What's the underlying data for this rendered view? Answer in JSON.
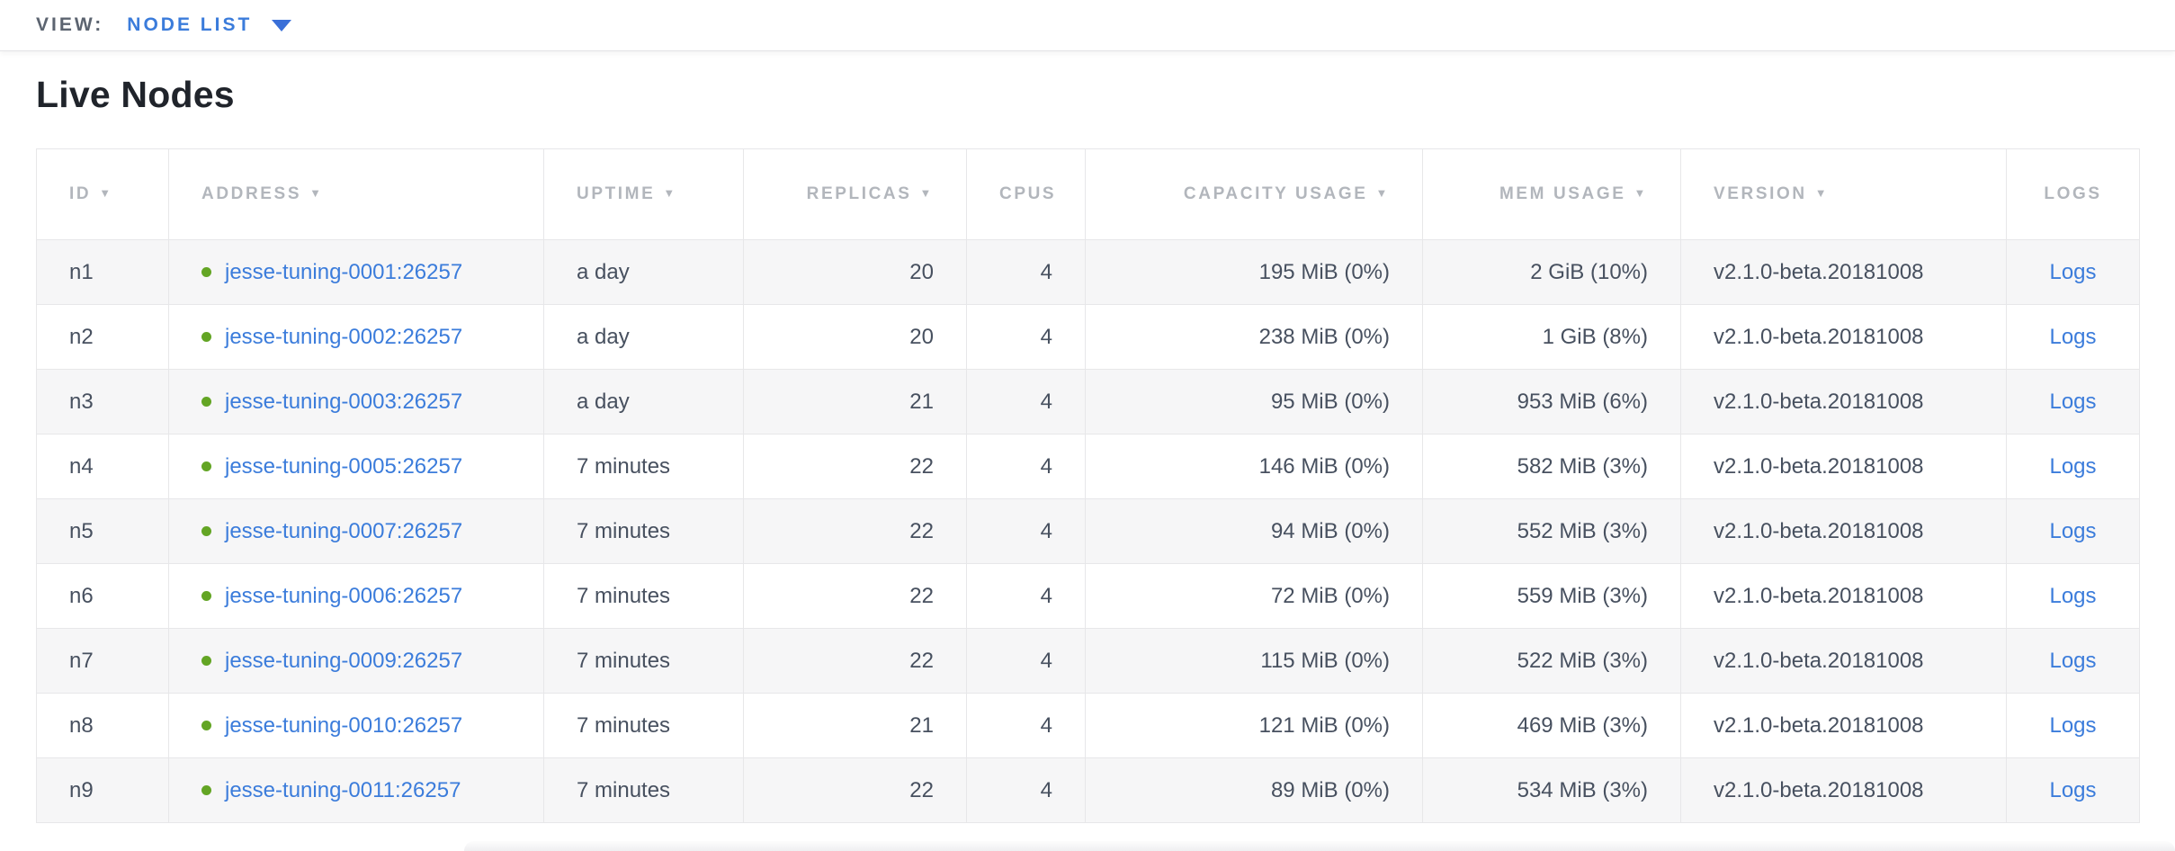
{
  "view_bar": {
    "label": "VIEW:",
    "selected_view": "NODE LIST"
  },
  "page": {
    "title": "Live Nodes"
  },
  "table": {
    "sort_icon": "▼",
    "address_status_icon": "green-dot",
    "columns": [
      {
        "key": "id",
        "label": "ID",
        "sortable": true
      },
      {
        "key": "address",
        "label": "ADDRESS",
        "sortable": true
      },
      {
        "key": "uptime",
        "label": "UPTIME",
        "sortable": true
      },
      {
        "key": "replicas",
        "label": "REPLICAS",
        "sortable": true
      },
      {
        "key": "cpus",
        "label": "CPUS",
        "sortable": false
      },
      {
        "key": "capacity",
        "label": "CAPACITY USAGE",
        "sortable": true
      },
      {
        "key": "mem",
        "label": "MEM USAGE",
        "sortable": true
      },
      {
        "key": "version",
        "label": "VERSION",
        "sortable": true
      },
      {
        "key": "logs",
        "label": "LOGS",
        "sortable": false
      }
    ],
    "rows": [
      {
        "id": "n1",
        "address": "jesse-tuning-0001:26257",
        "uptime": "a day",
        "replicas": "20",
        "cpus": "4",
        "capacity": "195 MiB (0%)",
        "mem": "2 GiB (10%)",
        "version": "v2.1.0-beta.20181008",
        "logs": "Logs"
      },
      {
        "id": "n2",
        "address": "jesse-tuning-0002:26257",
        "uptime": "a day",
        "replicas": "20",
        "cpus": "4",
        "capacity": "238 MiB (0%)",
        "mem": "1 GiB (8%)",
        "version": "v2.1.0-beta.20181008",
        "logs": "Logs"
      },
      {
        "id": "n3",
        "address": "jesse-tuning-0003:26257",
        "uptime": "a day",
        "replicas": "21",
        "cpus": "4",
        "capacity": "95 MiB (0%)",
        "mem": "953 MiB (6%)",
        "version": "v2.1.0-beta.20181008",
        "logs": "Logs"
      },
      {
        "id": "n4",
        "address": "jesse-tuning-0005:26257",
        "uptime": "7 minutes",
        "replicas": "22",
        "cpus": "4",
        "capacity": "146 MiB (0%)",
        "mem": "582 MiB (3%)",
        "version": "v2.1.0-beta.20181008",
        "logs": "Logs"
      },
      {
        "id": "n5",
        "address": "jesse-tuning-0007:26257",
        "uptime": "7 minutes",
        "replicas": "22",
        "cpus": "4",
        "capacity": "94 MiB (0%)",
        "mem": "552 MiB (3%)",
        "version": "v2.1.0-beta.20181008",
        "logs": "Logs"
      },
      {
        "id": "n6",
        "address": "jesse-tuning-0006:26257",
        "uptime": "7 minutes",
        "replicas": "22",
        "cpus": "4",
        "capacity": "72 MiB (0%)",
        "mem": "559 MiB (3%)",
        "version": "v2.1.0-beta.20181008",
        "logs": "Logs"
      },
      {
        "id": "n7",
        "address": "jesse-tuning-0009:26257",
        "uptime": "7 minutes",
        "replicas": "22",
        "cpus": "4",
        "capacity": "115 MiB (0%)",
        "mem": "522 MiB (3%)",
        "version": "v2.1.0-beta.20181008",
        "logs": "Logs"
      },
      {
        "id": "n8",
        "address": "jesse-tuning-0010:26257",
        "uptime": "7 minutes",
        "replicas": "21",
        "cpus": "4",
        "capacity": "121 MiB (0%)",
        "mem": "469 MiB (3%)",
        "version": "v2.1.0-beta.20181008",
        "logs": "Logs"
      },
      {
        "id": "n9",
        "address": "jesse-tuning-0011:26257",
        "uptime": "7 minutes",
        "replicas": "22",
        "cpus": "4",
        "capacity": "89 MiB (0%)",
        "mem": "534 MiB (3%)",
        "version": "v2.1.0-beta.20181008",
        "logs": "Logs"
      }
    ]
  },
  "colors": {
    "accent_blue": "#3b7cdb",
    "status_green": "#63a524",
    "header_gray": "#b2b6bc",
    "cell_text": "#47505f"
  }
}
